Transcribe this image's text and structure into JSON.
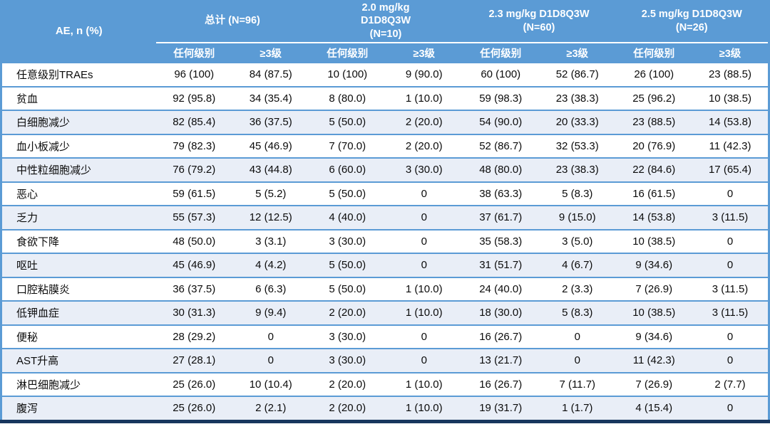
{
  "colors": {
    "header_bg": "#5b9bd5",
    "divider": "#5b9bd5",
    "row_alt_bg": "#e9eef7",
    "bottom_border": "#17365d"
  },
  "table": {
    "corner_header": "AE, n (%)",
    "groups": [
      {
        "label": "总计 (N=96)"
      },
      {
        "label": "2.0 mg/kg\nD1D8Q3W\n(N=10)"
      },
      {
        "label": "2.3 mg/kg D1D8Q3W\n(N=60)"
      },
      {
        "label": "2.5 mg/kg D1D8Q3W\n(N=26)"
      }
    ],
    "subheaders": [
      "任何级别",
      "≥3级",
      "任何级别",
      "≥3级",
      "任何级别",
      "≥3级",
      "任何级别",
      "≥3级"
    ],
    "rows": [
      {
        "label": "任意级别TRAEs",
        "values": [
          "96 (100)",
          "84 (87.5)",
          "10 (100)",
          "9 (90.0)",
          "60 (100)",
          "52 (86.7)",
          "26 (100)",
          "23 (88.5)"
        ]
      },
      {
        "label": "贫血",
        "values": [
          "92 (95.8)",
          "34 (35.4)",
          "8 (80.0)",
          "1 (10.0)",
          "59 (98.3)",
          "23 (38.3)",
          "25 (96.2)",
          "10 (38.5)"
        ]
      },
      {
        "label": "白细胞减少",
        "values": [
          "82 (85.4)",
          "36 (37.5)",
          "5 (50.0)",
          "2 (20.0)",
          "54 (90.0)",
          "20 (33.3)",
          "23 (88.5)",
          "14 (53.8)"
        ]
      },
      {
        "label": "血小板减少",
        "values": [
          "79 (82.3)",
          "45 (46.9)",
          "7 (70.0)",
          "2 (20.0)",
          "52 (86.7)",
          "32 (53.3)",
          "20 (76.9)",
          "11 (42.3)"
        ]
      },
      {
        "label": "中性粒细胞减少",
        "values": [
          "76 (79.2)",
          "43 (44.8)",
          "6 (60.0)",
          "3 (30.0)",
          "48 (80.0)",
          "23 (38.3)",
          "22 (84.6)",
          "17 (65.4)"
        ]
      },
      {
        "label": "恶心",
        "values": [
          "59 (61.5)",
          "5 (5.2)",
          "5 (50.0)",
          "0",
          "38 (63.3)",
          "5 (8.3)",
          "16 (61.5)",
          "0"
        ]
      },
      {
        "label": "乏力",
        "values": [
          "55 (57.3)",
          "12 (12.5)",
          "4 (40.0)",
          "0",
          "37 (61.7)",
          "9 (15.0)",
          "14 (53.8)",
          "3 (11.5)"
        ]
      },
      {
        "label": "食欲下降",
        "values": [
          "48 (50.0)",
          "3 (3.1)",
          "3 (30.0)",
          "0",
          "35 (58.3)",
          "3 (5.0)",
          "10 (38.5)",
          "0"
        ]
      },
      {
        "label": "呕吐",
        "values": [
          "45 (46.9)",
          "4 (4.2)",
          "5 (50.0)",
          "0",
          "31 (51.7)",
          "4 (6.7)",
          "9 (34.6)",
          "0"
        ]
      },
      {
        "label": "口腔粘膜炎",
        "values": [
          "36 (37.5)",
          "6 (6.3)",
          "5 (50.0)",
          "1 (10.0)",
          "24 (40.0)",
          "2 (3.3)",
          "7 (26.9)",
          "3 (11.5)"
        ]
      },
      {
        "label": "低钾血症",
        "values": [
          "30 (31.3)",
          "9 (9.4)",
          "2 (20.0)",
          "1 (10.0)",
          "18 (30.0)",
          "5 (8.3)",
          "10 (38.5)",
          "3 (11.5)"
        ]
      },
      {
        "label": "便秘",
        "values": [
          "28 (29.2)",
          "0",
          "3 (30.0)",
          "0",
          "16 (26.7)",
          "0",
          "9 (34.6)",
          "0"
        ]
      },
      {
        "label": "AST升高",
        "values": [
          "27 (28.1)",
          "0",
          "3 (30.0)",
          "0",
          "13 (21.7)",
          "0",
          "11 (42.3)",
          "0"
        ]
      },
      {
        "label": "淋巴细胞减少",
        "values": [
          "25 (26.0)",
          "10 (10.4)",
          "2 (20.0)",
          "1 (10.0)",
          "16 (26.7)",
          "7 (11.7)",
          "7 (26.9)",
          "2 (7.7)"
        ]
      },
      {
        "label": "腹泻",
        "values": [
          "25 (26.0)",
          "2 (2.1)",
          "2 (20.0)",
          "1 (10.0)",
          "19 (31.7)",
          "1 (1.7)",
          "4 (15.4)",
          "0"
        ]
      }
    ]
  }
}
